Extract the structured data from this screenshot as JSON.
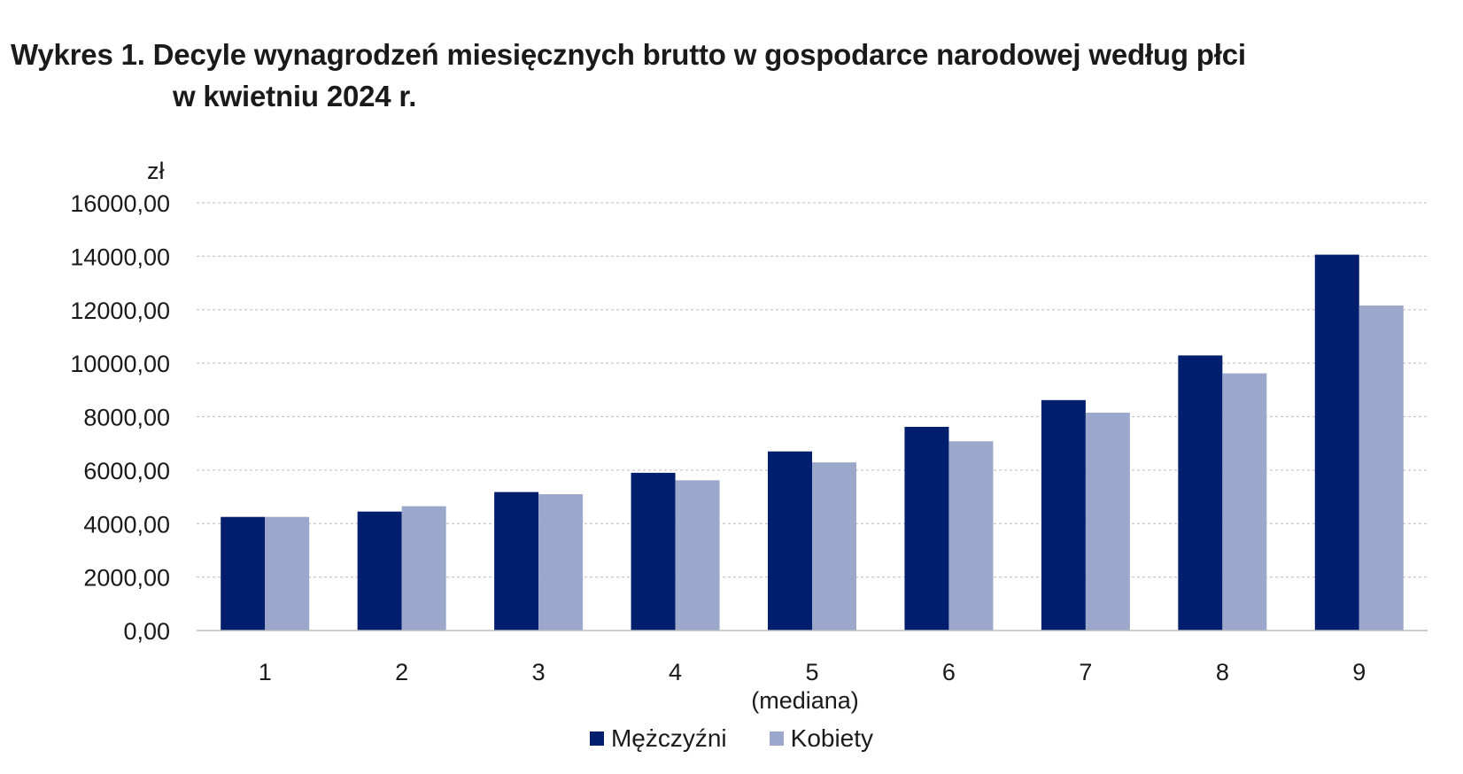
{
  "title": {
    "line1": "Wykres 1. Decyle wynagrodzeń miesięcznych brutto w gospodarce narodowej według płci",
    "line2": "w kwietniu 2024 r."
  },
  "chart_data": {
    "type": "bar",
    "title": "Wykres 1. Decyle wynagrodzeń miesięcznych brutto w gospodarce narodowej według płci w kwietniu 2024 r.",
    "ylabel": "zł",
    "xlabel": "",
    "ylim": [
      0,
      16000
    ],
    "yticks": [
      0,
      2000,
      4000,
      6000,
      8000,
      10000,
      12000,
      14000,
      16000
    ],
    "ytick_labels": [
      "0,00",
      "2000,00",
      "4000,00",
      "6000,00",
      "8000,00",
      "10000,00",
      "12000,00",
      "14000,00",
      "16000,00"
    ],
    "categories": [
      "1",
      "2",
      "3",
      "4",
      "5",
      "6",
      "7",
      "8",
      "9"
    ],
    "category_sublabels": {
      "5": "(mediana)"
    },
    "grid": true,
    "legend_position": "bottom",
    "series": [
      {
        "name": "Mężczyźni",
        "color": "#001e6e",
        "values": [
          4250,
          4450,
          5180,
          5900,
          6700,
          7620,
          8620,
          10290,
          14060
        ]
      },
      {
        "name": "Kobiety",
        "color": "#9ba8cb",
        "values": [
          4250,
          4650,
          5100,
          5620,
          6290,
          7080,
          8150,
          9620,
          12160
        ]
      }
    ]
  }
}
